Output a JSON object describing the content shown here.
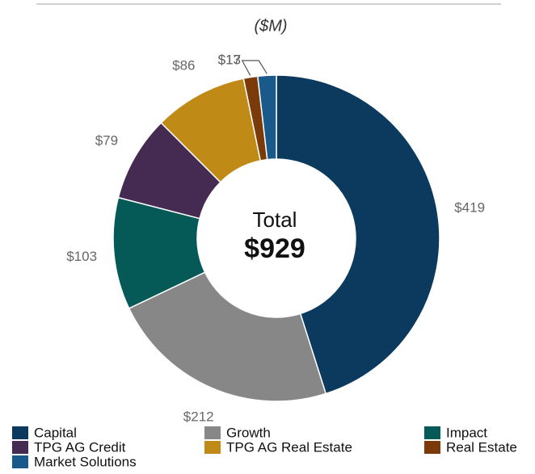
{
  "chart_data": {
    "type": "donut",
    "subtitle": "($M)",
    "categories": [
      "Capital",
      "Growth",
      "Impact",
      "TPG AG Credit",
      "TPG AG Real Estate",
      "Real Estate",
      "Market Solutions"
    ],
    "values": [
      419,
      212,
      103,
      79,
      86,
      13,
      17
    ],
    "value_labels": [
      "$419",
      "$212",
      "$103",
      "$79",
      "$86",
      "$13",
      "$17"
    ],
    "colors": [
      "#0b3a5e",
      "#878787",
      "#055a57",
      "#452a52",
      "#c08a16",
      "#7a3a0a",
      "#1a5a8a"
    ],
    "center_label": "Total",
    "total": 929,
    "total_label": "$929"
  }
}
